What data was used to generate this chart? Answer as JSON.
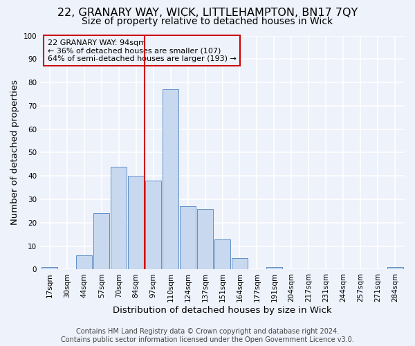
{
  "title_line1": "22, GRANARY WAY, WICK, LITTLEHAMPTON, BN17 7QY",
  "title_line2": "Size of property relative to detached houses in Wick",
  "xlabel": "Distribution of detached houses by size in Wick",
  "ylabel": "Number of detached properties",
  "bar_labels": [
    "17sqm",
    "30sqm",
    "44sqm",
    "57sqm",
    "70sqm",
    "84sqm",
    "97sqm",
    "110sqm",
    "124sqm",
    "137sqm",
    "151sqm",
    "164sqm",
    "177sqm",
    "191sqm",
    "204sqm",
    "217sqm",
    "231sqm",
    "244sqm",
    "257sqm",
    "271sqm",
    "284sqm"
  ],
  "bar_values": [
    1,
    0,
    6,
    24,
    44,
    40,
    38,
    77,
    27,
    26,
    13,
    5,
    0,
    1,
    0,
    0,
    0,
    0,
    0,
    0,
    1
  ],
  "bar_color": "#c8d8ee",
  "bar_edge_color": "#6090c8",
  "ylim": [
    0,
    100
  ],
  "yticks": [
    0,
    10,
    20,
    30,
    40,
    50,
    60,
    70,
    80,
    90,
    100
  ],
  "annotation_line1": "22 GRANARY WAY: 94sqm",
  "annotation_line2": "← 36% of detached houses are smaller (107)",
  "annotation_line3": "64% of semi-detached houses are larger (193) →",
  "vline_color": "#cc0000",
  "box_color": "#cc0000",
  "footer1": "Contains HM Land Registry data © Crown copyright and database right 2024.",
  "footer2": "Contains public sector information licensed under the Open Government Licence v3.0.",
  "background_color": "#eef2fb",
  "grid_color": "#ffffff",
  "title1_fontsize": 11.5,
  "title2_fontsize": 10,
  "axis_label_fontsize": 9.5,
  "tick_fontsize": 7.5,
  "annotation_fontsize": 8,
  "footer_fontsize": 7
}
